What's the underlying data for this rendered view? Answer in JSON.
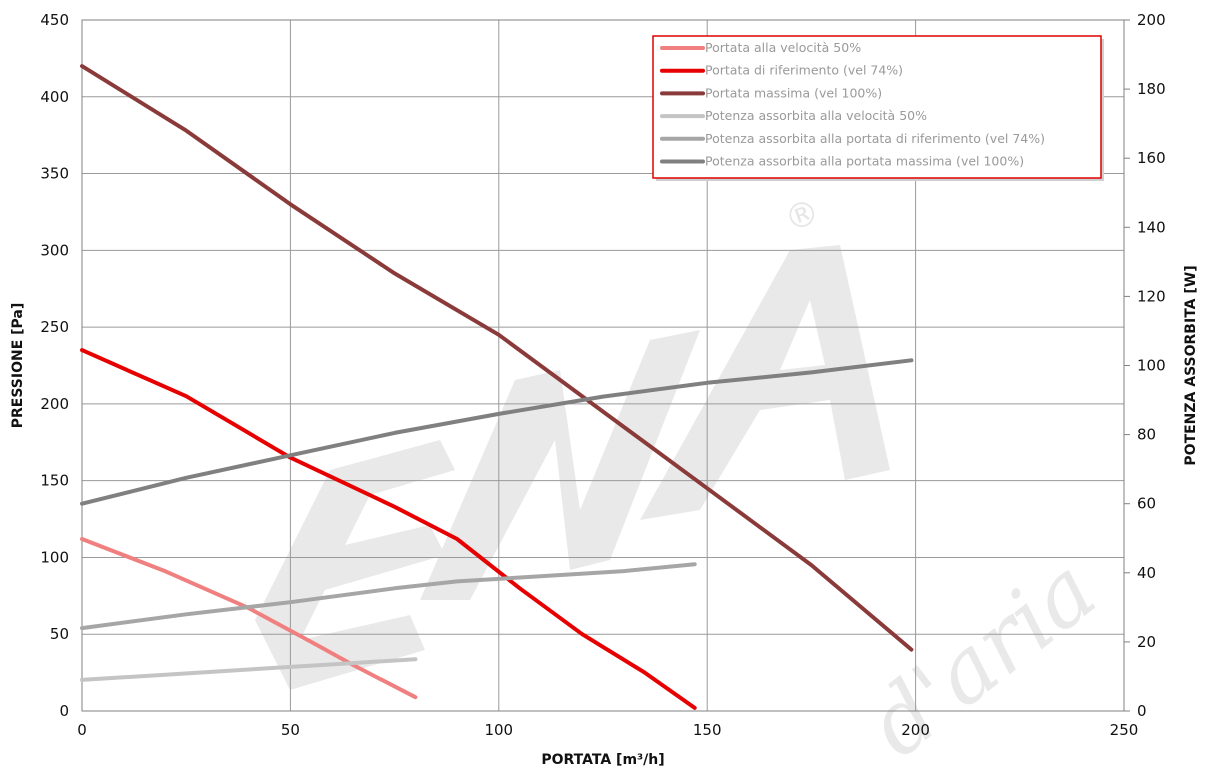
{
  "chart_data": {
    "type": "line",
    "xlabel": "PORTATA [m³/h]",
    "ylabel_left": "PRESSIONE [Pa]",
    "ylabel_right": "POTENZA ASSORBITA [W]",
    "xlim": [
      0,
      250
    ],
    "ylim_left": [
      0,
      450
    ],
    "ylim_right": [
      0,
      200
    ],
    "x_ticks": [
      "0",
      "50",
      "100",
      "150",
      "200",
      "250"
    ],
    "y_left_ticks": [
      "0",
      "50",
      "100",
      "150",
      "200",
      "250",
      "300",
      "350",
      "400",
      "450"
    ],
    "y_right_ticks": [
      "0",
      "20",
      "40",
      "60",
      "80",
      "100",
      "120",
      "140",
      "160",
      "180",
      "200"
    ],
    "grid": true,
    "legend_position": "top-right",
    "watermark": "EMA d'aria ®",
    "series": [
      {
        "name": "Portata alla velocità 50%",
        "axis": "left",
        "color": "#f08080",
        "points": [
          [
            0,
            112
          ],
          [
            20,
            91
          ],
          [
            40,
            67
          ],
          [
            55,
            45
          ],
          [
            65,
            30
          ],
          [
            80,
            9
          ]
        ]
      },
      {
        "name": "Portata di riferimento (vel 74%)",
        "axis": "left",
        "color": "#e60000",
        "points": [
          [
            0,
            235
          ],
          [
            25,
            205
          ],
          [
            50,
            165
          ],
          [
            75,
            133
          ],
          [
            90,
            112
          ],
          [
            105,
            80
          ],
          [
            120,
            50
          ],
          [
            135,
            25
          ],
          [
            147,
            2
          ]
        ]
      },
      {
        "name": "Portata massima (vel 100%)",
        "axis": "left",
        "color": "#8b3a3a",
        "points": [
          [
            0,
            420
          ],
          [
            25,
            378
          ],
          [
            50,
            330
          ],
          [
            75,
            285
          ],
          [
            100,
            245
          ],
          [
            125,
            195
          ],
          [
            150,
            145
          ],
          [
            175,
            95
          ],
          [
            199,
            40
          ]
        ]
      },
      {
        "name": "Potenza assorbita alla velocità 50%",
        "axis": "right",
        "color": "#c4c4c4",
        "points": [
          [
            0,
            9
          ],
          [
            20,
            10.5
          ],
          [
            40,
            12
          ],
          [
            60,
            13.5
          ],
          [
            80,
            15
          ]
        ]
      },
      {
        "name": "Potenza assorbita alla portata di riferimento (vel 74%)",
        "axis": "right",
        "color": "#a6a6a6",
        "points": [
          [
            0,
            24
          ],
          [
            25,
            28
          ],
          [
            50,
            31.5
          ],
          [
            75,
            35.5
          ],
          [
            90,
            37.5
          ],
          [
            110,
            39
          ],
          [
            130,
            40.5
          ],
          [
            147,
            42.5
          ]
        ]
      },
      {
        "name": "Potenza assorbita alla portata massima (vel 100%)",
        "axis": "right",
        "color": "#808080",
        "points": [
          [
            0,
            60
          ],
          [
            25,
            67.5
          ],
          [
            50,
            74
          ],
          [
            75,
            80.5
          ],
          [
            100,
            86
          ],
          [
            125,
            91
          ],
          [
            150,
            95
          ],
          [
            175,
            98
          ],
          [
            199,
            101.5
          ]
        ]
      }
    ]
  }
}
